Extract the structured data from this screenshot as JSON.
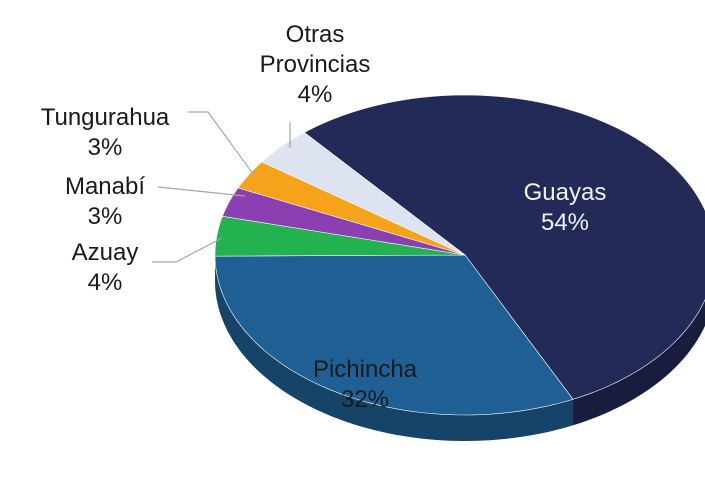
{
  "chart_data": {
    "type": "pie",
    "categories": [
      "Guayas",
      "Pichincha",
      "Azuay",
      "Manabí",
      "Tungurahua",
      "Otras Provincias"
    ],
    "values": [
      54,
      32,
      4,
      3,
      3,
      4
    ],
    "value_labels": [
      "54%",
      "32%",
      "4%",
      "3%",
      "3%",
      "4%"
    ],
    "colors": [
      "#232a57",
      "#1f5f94",
      "#22b24f",
      "#8b3fb0",
      "#f6a21b",
      "#dde3f0"
    ]
  }
}
